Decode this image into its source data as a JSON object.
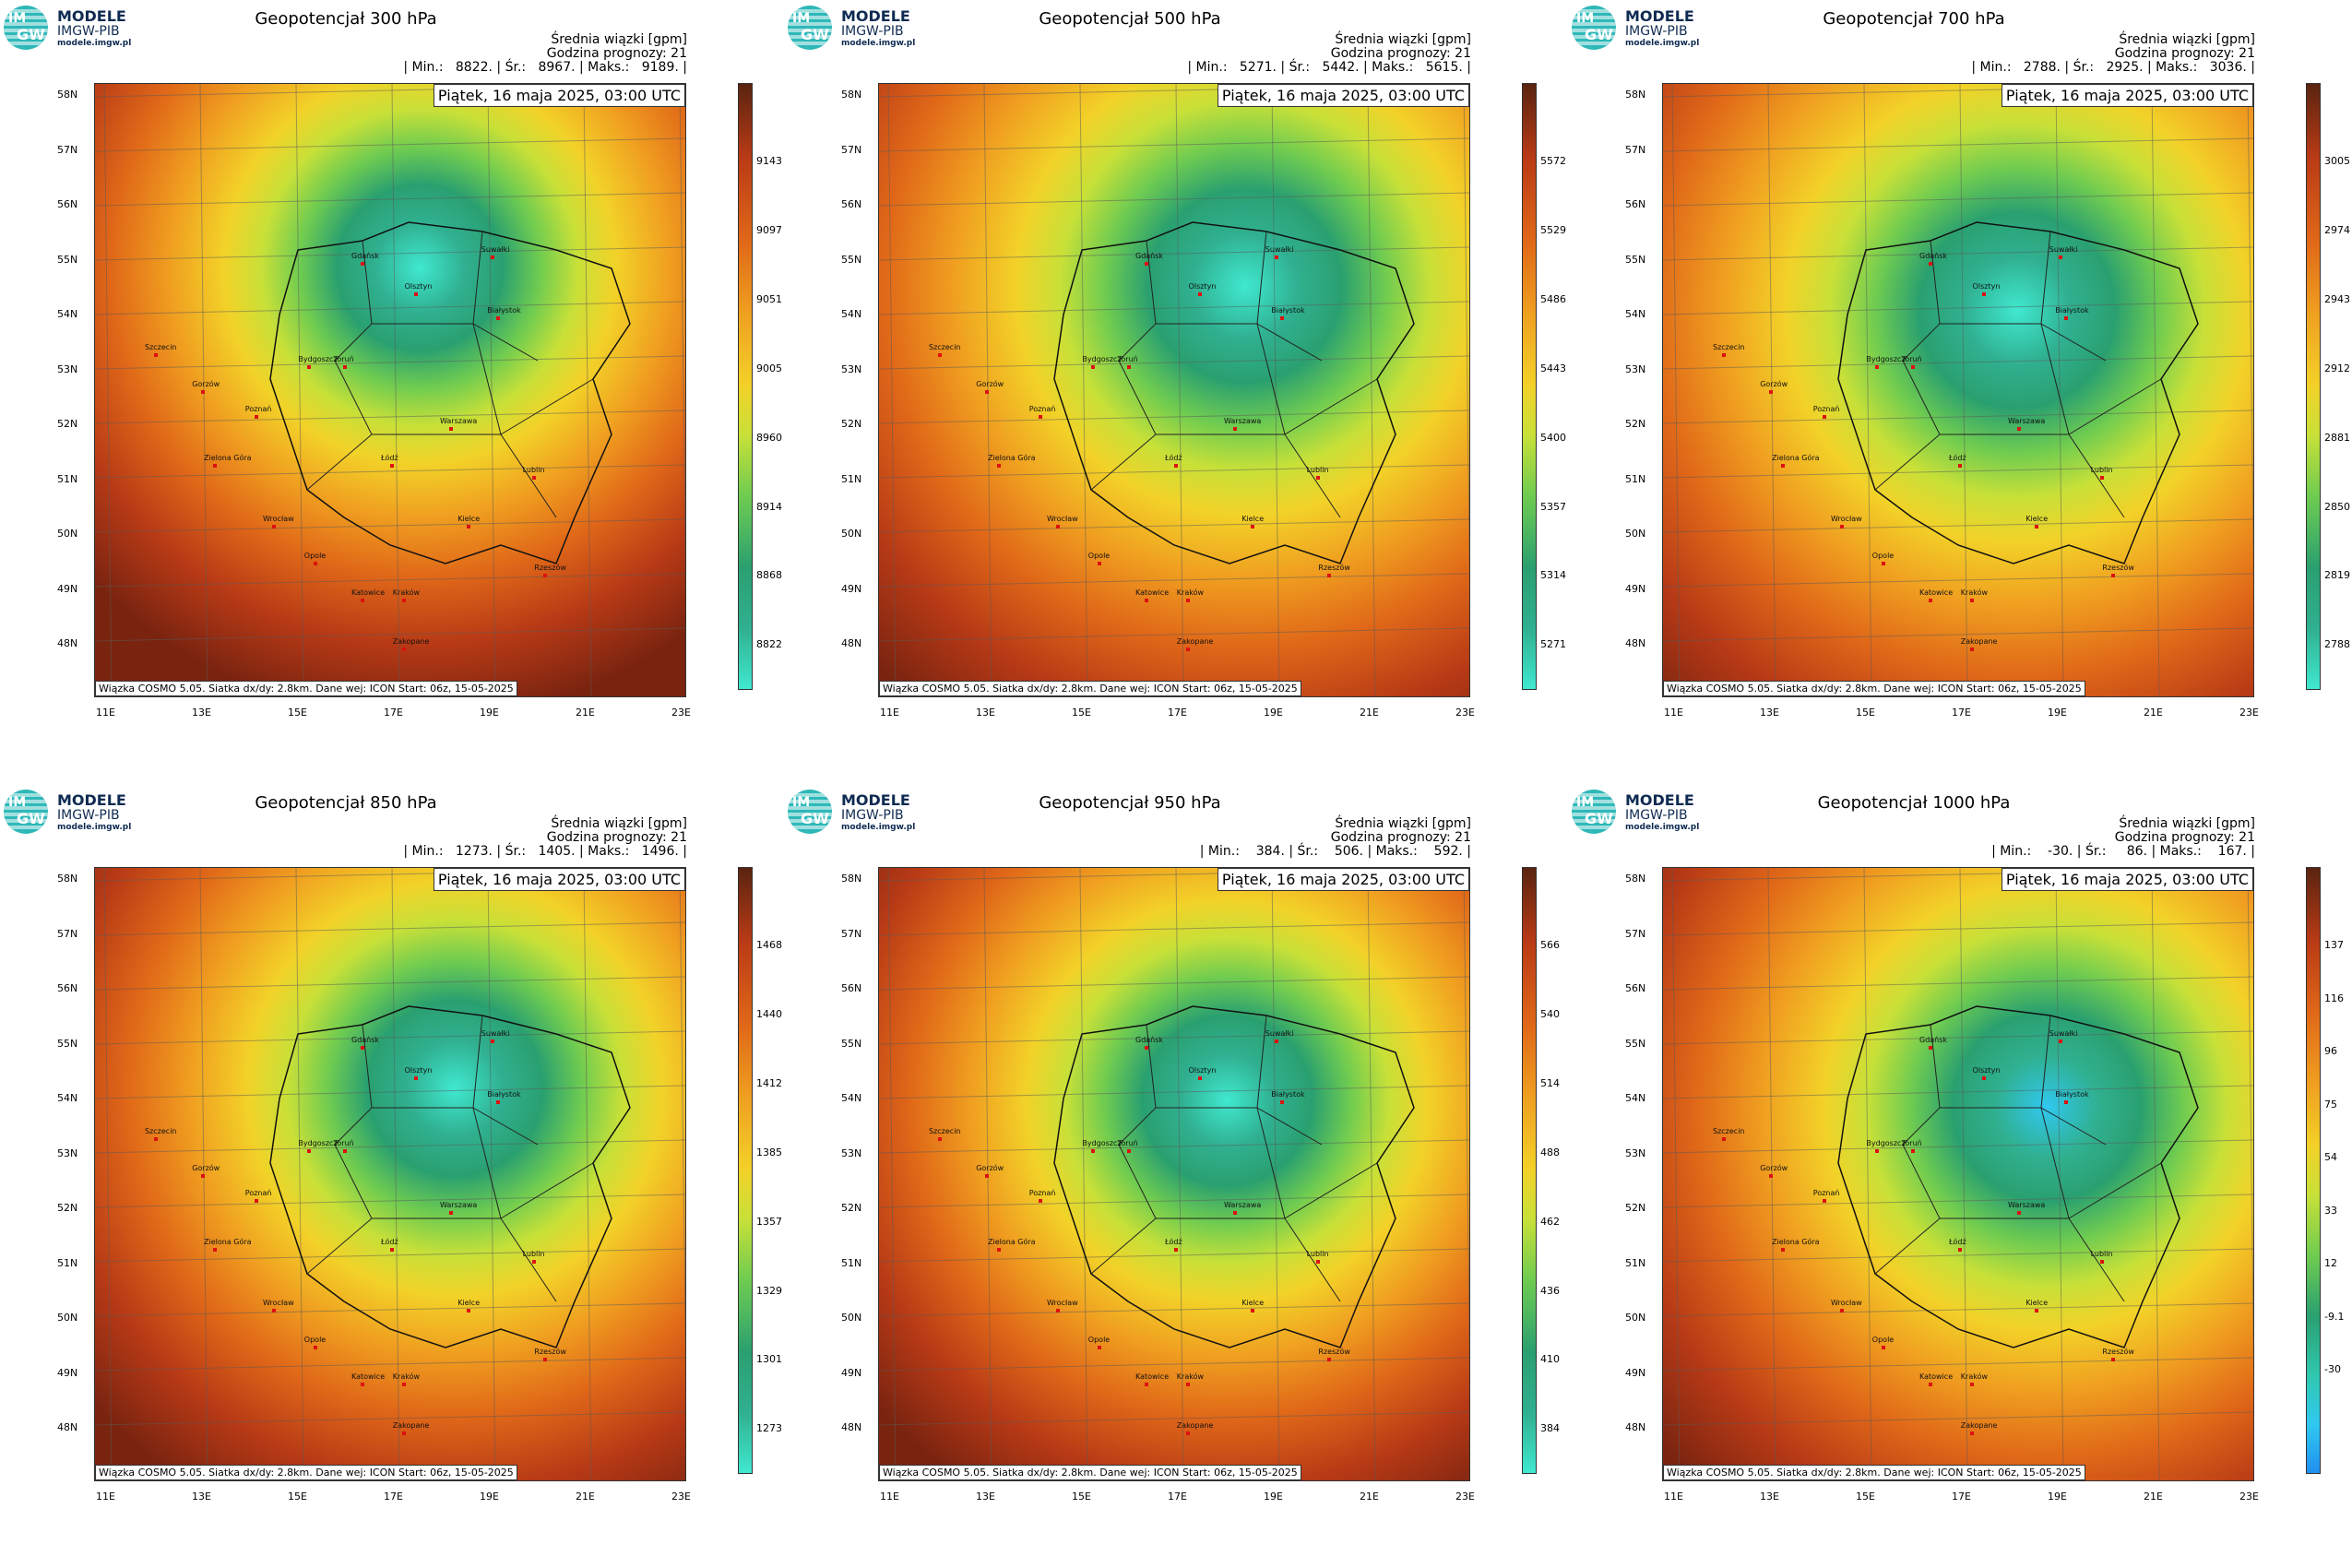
{
  "logo": {
    "name": "MODELE",
    "org": "IMGW-PIB",
    "url": "modele.imgw.pl",
    "badge_top": "IM",
    "badge_bottom": "GW"
  },
  "common": {
    "ensemble_label": "Średnia wiązki [gpm]",
    "forecast_hour": "Godzina prognozy: 21",
    "date": "Piątek, 16 maja 2025, 03:00 UTC",
    "credit": "Wiązka COSMO 5.05. Siatka dx/dy: 2.8km. Dane wej: ICON Start: 06z, 15-05-2025",
    "lat_labels": [
      "58N",
      "57N",
      "56N",
      "55N",
      "54N",
      "53N",
      "52N",
      "51N",
      "50N",
      "49N",
      "48N"
    ],
    "lon_labels": [
      "11E",
      "13E",
      "15E",
      "17E",
      "19E",
      "21E",
      "23E"
    ]
  },
  "panels": [
    {
      "title": "Geopotencjał 300 hPa",
      "stats": "| Min.:   8822. | Śr.:   8967. | Maks.:   9189. |",
      "colorbar": [
        "9143",
        "9097",
        "9051",
        "9005",
        "8960",
        "8914",
        "8868",
        "8822"
      ]
    },
    {
      "title": "Geopotencjał 500 hPa",
      "stats": "| Min.:   5271. | Śr.:   5442. | Maks.:   5615. |",
      "colorbar": [
        "5572",
        "5529",
        "5486",
        "5443",
        "5400",
        "5357",
        "5314",
        "5271"
      ]
    },
    {
      "title": "Geopotencjał 700 hPa",
      "stats": "| Min.:   2788. | Śr.:   2925. | Maks.:   3036. |",
      "colorbar": [
        "3005",
        "2974",
        "2943",
        "2912",
        "2881",
        "2850",
        "2819",
        "2788"
      ]
    },
    {
      "title": "Geopotencjał 850 hPa",
      "stats": "| Min.:   1273. | Śr.:   1405. | Maks.:   1496. |",
      "colorbar": [
        "1468",
        "1440",
        "1412",
        "1385",
        "1357",
        "1329",
        "1301",
        "1273"
      ]
    },
    {
      "title": "Geopotencjał 950 hPa",
      "stats": "| Min.:    384. | Śr.:    506. | Maks.:    592. |",
      "colorbar": [
        "566",
        "540",
        "514",
        "488",
        "462",
        "436",
        "410",
        "384"
      ]
    },
    {
      "title": "Geopotencjał 1000 hPa",
      "stats": "| Min.:    -30. | Śr.:     86. | Maks.:    167. |",
      "colorbar": [
        "137",
        "116",
        "96",
        "75",
        "54",
        "33",
        "12",
        "-9.1",
        "-30"
      ]
    }
  ],
  "cities": [
    "Gdańsk",
    "Suwałki",
    "Olsztyn",
    "Białystok",
    "Szczecin",
    "Bydgoszcz",
    "Toruń",
    "Gorzów",
    "Poznań",
    "Warszawa",
    "Zielona Góra",
    "Łódź",
    "Lublin",
    "Wrocław",
    "Kielce",
    "Opole",
    "Rzeszów",
    "Katowice",
    "Kraków",
    "Zakopane"
  ]
}
